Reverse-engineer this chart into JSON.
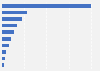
{
  "values": [
    100,
    28,
    23,
    17,
    13,
    10,
    8,
    5,
    3,
    2
  ],
  "bar_color": "#4472c4",
  "background_color": "#f2f2f2",
  "grid_color": "#ffffff",
  "ylim": [
    -0.6,
    9.6
  ],
  "xlim": [
    0,
    108
  ]
}
